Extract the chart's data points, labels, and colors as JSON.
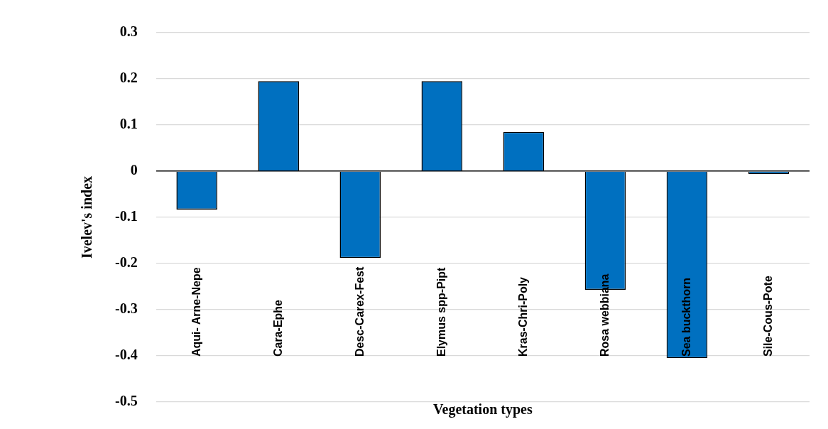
{
  "chart_data": {
    "type": "bar",
    "xlabel": "Vegetation types",
    "ylabel": "Ivelev's index",
    "categories": [
      "Aqui- Arne-Nepe",
      "Cara-Ephe",
      "Desc-Carex-Fest",
      "Elymus spp-Pipt",
      "Kras-Chri-Poly",
      "Rosa webbiana",
      "Sea buckthorn",
      "Sile-Cous-Pote"
    ],
    "values": [
      -0.083,
      0.195,
      -0.188,
      0.195,
      0.085,
      -0.257,
      -0.405,
      -0.006
    ],
    "color": "#0070c0",
    "ylim": [
      -0.5,
      0.3
    ],
    "yticks": [
      -0.5,
      -0.4,
      -0.3,
      -0.2,
      -0.1,
      0,
      0.1,
      0.2,
      0.3
    ],
    "grid": "y",
    "legend": false
  }
}
